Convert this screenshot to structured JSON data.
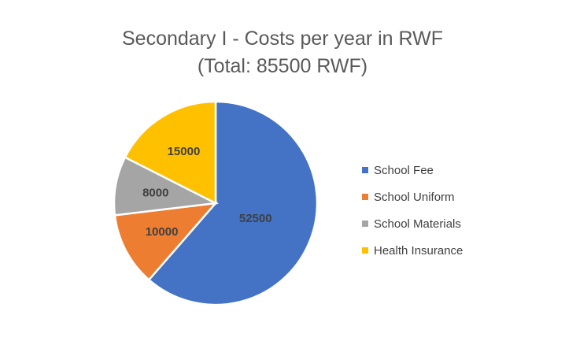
{
  "chart_data": {
    "type": "pie",
    "title": "Secondary I - Costs per year in RWF",
    "subtitle": "(Total: 85500 RWF)",
    "categories": [
      "School Fee",
      "School Uniform",
      "School Materials",
      "Health Insurance"
    ],
    "values": [
      52500,
      10000,
      8000,
      15000
    ],
    "colors": [
      "#4472C4",
      "#ED7D31",
      "#A5A5A5",
      "#FFC000"
    ],
    "data_labels": [
      "52500",
      "10000",
      "8000",
      "15000"
    ],
    "legend_position": "right"
  },
  "legend": {
    "items": [
      {
        "label": "School Fee",
        "color": "#4472C4"
      },
      {
        "label": "School Uniform",
        "color": "#ED7D31"
      },
      {
        "label": "School Materials",
        "color": "#A5A5A5"
      },
      {
        "label": "Health Insurance",
        "color": "#FFC000"
      }
    ]
  }
}
